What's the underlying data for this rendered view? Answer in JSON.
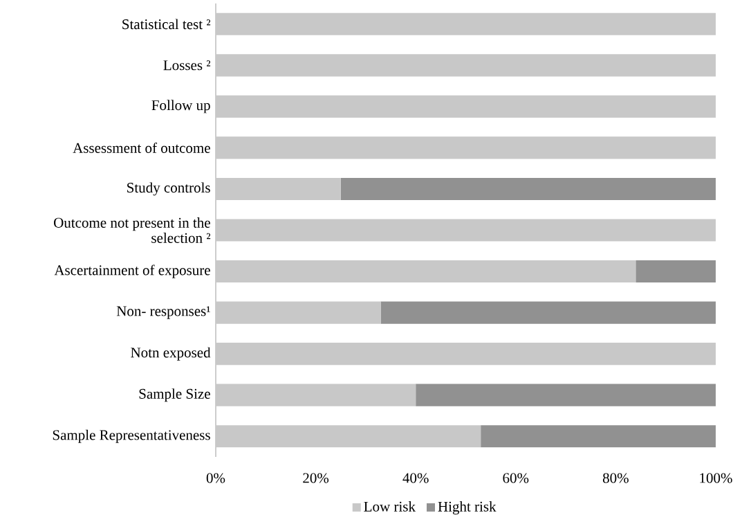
{
  "chart_data": {
    "type": "bar",
    "orientation": "horizontal",
    "stacked": true,
    "categories": [
      "Statistical test ²",
      "Losses ²",
      "Follow up",
      "Assessment of outcome",
      "Study controls",
      "Outcome not present in the selection ²",
      "Ascertainment of exposure",
      "Non- responses¹",
      "Notn exposed",
      "Sample Size",
      "Sample Representativeness"
    ],
    "series": [
      {
        "name": "Low risk",
        "color": "#c8c8c8",
        "values": [
          100,
          100,
          100,
          100,
          25,
          100,
          84,
          33,
          100,
          40,
          53
        ]
      },
      {
        "name": "Hight risk",
        "color": "#919191",
        "values": [
          0,
          0,
          0,
          0,
          75,
          0,
          16,
          67,
          0,
          60,
          47
        ]
      }
    ],
    "xlim": [
      0,
      100
    ],
    "xticks": [
      {
        "value": 0,
        "label": "0%"
      },
      {
        "value": 20,
        "label": "20%"
      },
      {
        "value": 40,
        "label": "40%"
      },
      {
        "value": 60,
        "label": "60%"
      },
      {
        "value": 80,
        "label": "80%"
      },
      {
        "value": 100,
        "label": "100%"
      }
    ],
    "legend": "bottom"
  }
}
